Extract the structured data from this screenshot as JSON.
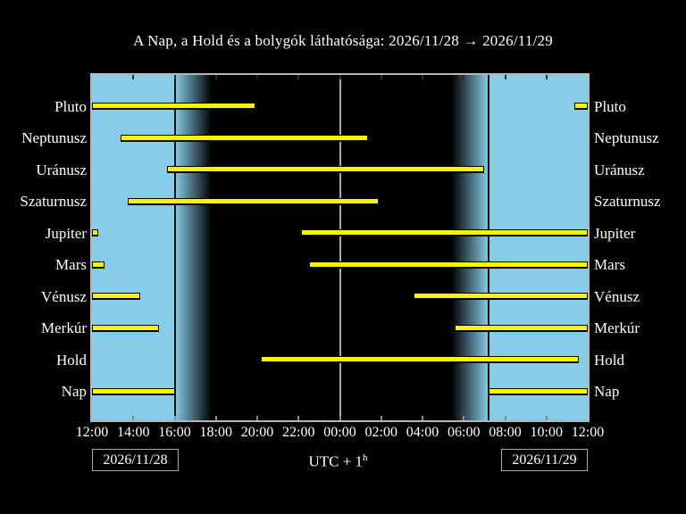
{
  "title": "A Nap, a Hold és a bolygók láthatósága: 2026/11/28 → 2026/11/29",
  "colors": {
    "background": "#000000",
    "day_sky": "#87CDE9",
    "night_sky": "#000000",
    "bar_fill": "#F8F400",
    "bar_outline": "#000000",
    "plot_border": "#B6B6B6",
    "terminator_line": "#0D0D0D",
    "midnight_line": "#A8A8A8",
    "text": "#FFFFFF"
  },
  "x_axis": {
    "tick_labels": [
      "12:00",
      "14:00",
      "16:00",
      "18:00",
      "20:00",
      "22:00",
      "00:00",
      "02:00",
      "04:00",
      "06:00",
      "08:00",
      "10:00",
      "12:00"
    ]
  },
  "footer": {
    "left_date": "2026/11/28",
    "right_date": "2026/11/29",
    "timezone_label": "UTC + 1",
    "timezone_superscript": "h"
  },
  "chart_data": {
    "type": "gantt",
    "title": "A Nap, a Hold és a bolygók láthatósága: 2026/11/28 → 2026/11/29",
    "x_axis_hours_from_noon": [
      0,
      24
    ],
    "x_tick_labels": [
      "12:00",
      "14:00",
      "16:00",
      "18:00",
      "20:00",
      "22:00",
      "00:00",
      "02:00",
      "04:00",
      "06:00",
      "08:00",
      "10:00",
      "12:00"
    ],
    "sun": {
      "sunset_h": 4.0,
      "dark_end_h": 5.8,
      "light_start_h": 17.4,
      "sunrise_h": 19.2,
      "midnight_h": 12.0,
      "sunset_time": "16:00",
      "sunrise_time": "07:12"
    },
    "rows": [
      {
        "label": "Pluto",
        "intervals_h": [
          [
            0,
            7.92
          ],
          [
            23.35,
            24
          ]
        ],
        "intervals_time": [
          [
            "12:00",
            "19:55"
          ],
          [
            "11:21",
            "12:00"
          ]
        ]
      },
      {
        "label": "Neptunusz",
        "intervals_h": [
          [
            1.38,
            13.36
          ]
        ],
        "intervals_time": [
          [
            "13:23",
            "01:22"
          ]
        ]
      },
      {
        "label": "Uránusz",
        "intervals_h": [
          [
            3.63,
            19.0
          ]
        ],
        "intervals_time": [
          [
            "15:38",
            "07:00"
          ]
        ]
      },
      {
        "label": "Szaturnusz",
        "intervals_h": [
          [
            1.73,
            13.88
          ]
        ],
        "intervals_time": [
          [
            "13:44",
            "01:53"
          ]
        ]
      },
      {
        "label": "Jupiter",
        "intervals_h": [
          [
            0,
            0.3
          ],
          [
            10.12,
            24
          ]
        ],
        "intervals_time": [
          [
            "12:00",
            "12:18"
          ],
          [
            "22:07",
            "12:00"
          ]
        ]
      },
      {
        "label": "Mars",
        "intervals_h": [
          [
            0,
            0.6
          ],
          [
            10.5,
            24
          ]
        ],
        "intervals_time": [
          [
            "12:00",
            "12:36"
          ],
          [
            "22:30",
            "12:00"
          ]
        ]
      },
      {
        "label": "Vénusz",
        "intervals_h": [
          [
            0,
            2.33
          ],
          [
            15.57,
            24
          ]
        ],
        "intervals_time": [
          [
            "12:00",
            "14:20"
          ],
          [
            "03:34",
            "12:00"
          ]
        ]
      },
      {
        "label": "Merkúr",
        "intervals_h": [
          [
            0,
            3.24
          ],
          [
            17.56,
            24
          ]
        ],
        "intervals_time": [
          [
            "12:00",
            "15:15"
          ],
          [
            "05:33",
            "12:00"
          ]
        ]
      },
      {
        "label": "Hold",
        "intervals_h": [
          [
            8.17,
            23.57
          ]
        ],
        "intervals_time": [
          [
            "20:10",
            "11:34"
          ]
        ]
      },
      {
        "label": "Nap",
        "intervals_h": [
          [
            0,
            4.0
          ],
          [
            19.2,
            24
          ]
        ],
        "intervals_time": [
          [
            "12:00",
            "16:00"
          ],
          [
            "07:12",
            "12:00"
          ]
        ]
      }
    ]
  }
}
